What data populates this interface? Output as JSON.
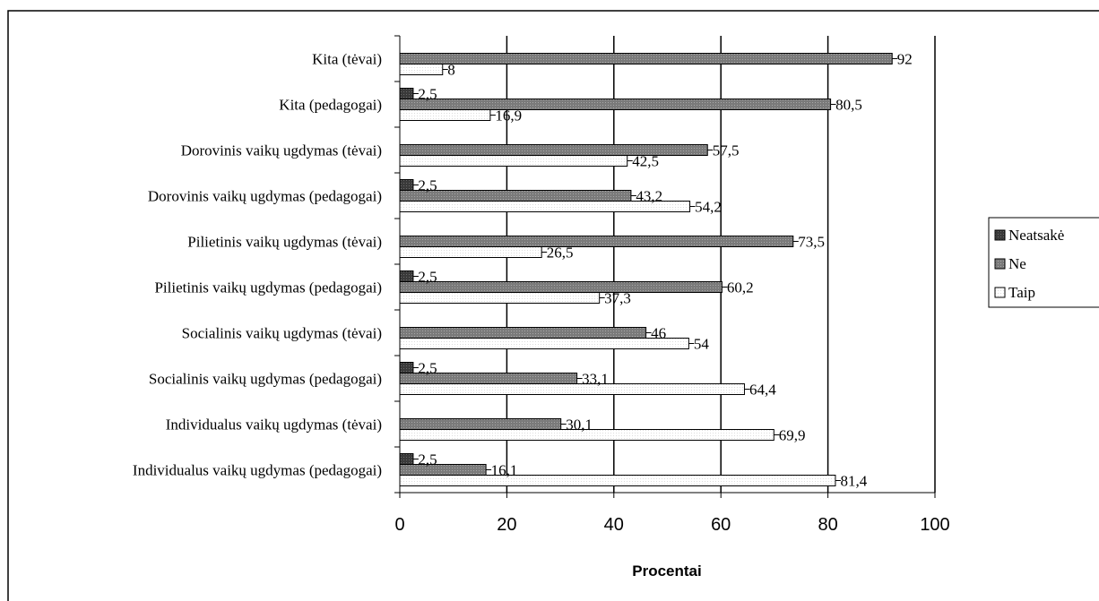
{
  "chart_data": {
    "type": "bar",
    "orientation": "horizontal",
    "categories": [
      "Kita (tėvai)",
      "Kita (pedagogai)",
      "Dorovinis vaikų ugdymas (tėvai)",
      "Dorovinis vaikų ugdymas (pedagogai)",
      "Pilietinis vaikų ugdymas (tėvai)",
      "Pilietinis vaikų ugdymas (pedagogai)",
      "Socialinis vaikų ugdymas (tėvai)",
      "Socialinis vaikų ugdymas (pedagogai)",
      "Individualus vaikų ugdymas (tėvai)",
      "Individualus vaikų ugdymas (pedagogai)"
    ],
    "series": [
      {
        "name": "Neatsakė",
        "color": "#404040",
        "values": [
          null,
          2.5,
          null,
          2.5,
          null,
          2.5,
          null,
          2.5,
          null,
          2.5
        ],
        "labels": [
          "",
          "2,5",
          "",
          "2,5",
          "",
          "2,5",
          "",
          "2,5",
          "",
          "2,5"
        ]
      },
      {
        "name": "Ne",
        "color": "#808080",
        "values": [
          92,
          80.5,
          57.5,
          43.2,
          73.5,
          60.2,
          46,
          33.1,
          30.1,
          16.1
        ],
        "labels": [
          "92",
          "80,5",
          "57,5",
          "43,2",
          "73,5",
          "60,2",
          "46",
          "33,1",
          "30,1",
          "16,1"
        ]
      },
      {
        "name": "Taip",
        "color": "#ffffff",
        "values": [
          8,
          16.9,
          42.5,
          54.2,
          26.5,
          37.3,
          54,
          64.4,
          69.9,
          81.4
        ],
        "labels": [
          "8",
          "16,9",
          "42,5",
          "54,2",
          "26,5",
          "37,3",
          "54",
          "64,4",
          "69,9",
          "81,4"
        ]
      }
    ],
    "xlabel": "Procentai",
    "xlim": [
      0,
      100
    ],
    "xticks": [
      "0",
      "20",
      "40",
      "60",
      "80",
      "100"
    ],
    "grid": true,
    "legend_position": "right"
  }
}
